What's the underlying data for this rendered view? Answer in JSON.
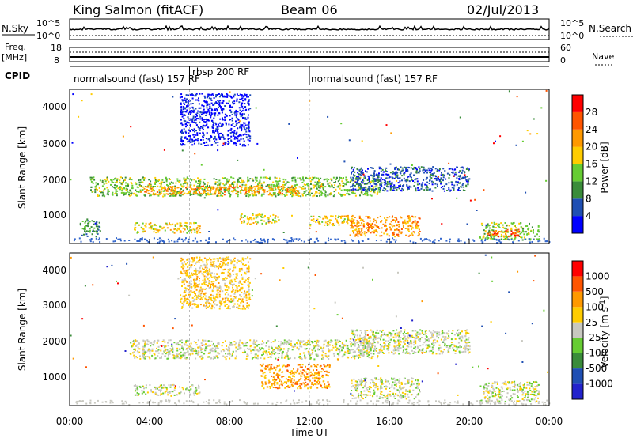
{
  "header": {
    "station": "King Salmon (fitACF)",
    "beam": "Beam 06",
    "date": "02/Jul/2013"
  },
  "top_panels": {
    "nsky_label": "N.Sky",
    "nsky_ticks": [
      "10^5",
      "10^0"
    ],
    "nsearch_label": "N.Search",
    "nsearch_ticks": [
      "10^5",
      "10^0"
    ],
    "freq_label_1": "Freq.",
    "freq_label_2": "[MHz]",
    "freq_ticks": [
      "18",
      "8"
    ],
    "nave_label": "Nave",
    "nave_ticks": [
      "60",
      "0"
    ],
    "cpid_label": "CPID",
    "cpid_segments": [
      {
        "label": "normalsound (fast) 157 RF",
        "start_h": 0,
        "end_h": 6
      },
      {
        "label": "rbsp 200 RF",
        "start_h": 6,
        "end_h": 12
      },
      {
        "label": "normalsound (fast) 157 RF",
        "start_h": 12,
        "end_h": 24
      }
    ]
  },
  "x_axis": {
    "label": "Time UT",
    "ticks": [
      "00:00",
      "04:00",
      "08:00",
      "12:00",
      "16:00",
      "20:00",
      "00:00"
    ]
  },
  "power_panel": {
    "ylabel": "Slant Range [km]",
    "yticks": [
      "4000",
      "3000",
      "2000",
      "1000"
    ],
    "colorbar_label": "Power [dB]",
    "colorbar_ticks": [
      "28",
      "24",
      "20",
      "16",
      "12",
      "8",
      "4"
    ],
    "colors": [
      "#0000ff",
      "#1f4fb3",
      "#3a8c3a",
      "#66cc33",
      "#ffcc00",
      "#ff9900",
      "#ff5500",
      "#ff0000"
    ]
  },
  "velocity_panel": {
    "ylabel": "Slant Range [km]",
    "yticks": [
      "4000",
      "3000",
      "2000",
      "1000"
    ],
    "colorbar_label": "Velocity [m s^-1]",
    "colorbar_ticks": [
      "1000",
      "500",
      "100",
      "25",
      "-25",
      "-100",
      "-500",
      "-1000"
    ],
    "colors": [
      "#2222cc",
      "#1f4fb3",
      "#3a8c3a",
      "#66cc33",
      "#c8c8c0",
      "#ffcc00",
      "#ff9900",
      "#ff5500",
      "#ff0000"
    ]
  },
  "chart_data": {
    "type": "heatmap",
    "x_unit": "hours UT",
    "xlim": [
      0,
      24
    ],
    "ylim_km": [
      180,
      4600
    ],
    "power_regions": [
      {
        "t0": 0.5,
        "t1": 1.5,
        "r0": 400,
        "r1": 900,
        "level": 2
      },
      {
        "t0": 1.0,
        "t1": 15.5,
        "r0": 1550,
        "r1": 2100,
        "level": 3
      },
      {
        "t0": 3.5,
        "t1": 11.5,
        "r0": 1600,
        "r1": 1850,
        "level": 5
      },
      {
        "t0": 3.2,
        "t1": 6.5,
        "r0": 500,
        "r1": 800,
        "level": 4
      },
      {
        "t0": 8.5,
        "t1": 10.5,
        "r0": 750,
        "r1": 1050,
        "level": 4
      },
      {
        "t0": 12.0,
        "t1": 14.0,
        "r0": 700,
        "r1": 1000,
        "level": 4
      },
      {
        "t0": 14.0,
        "t1": 17.5,
        "r0": 400,
        "r1": 1000,
        "level": 5
      },
      {
        "t0": 14.0,
        "t1": 20.0,
        "r0": 1700,
        "r1": 2400,
        "level": 1
      },
      {
        "t0": 20.5,
        "t1": 23.5,
        "r0": 300,
        "r1": 800,
        "level": 3
      },
      {
        "t0": 20.8,
        "t1": 22.5,
        "r0": 400,
        "r1": 600,
        "level": 6
      },
      {
        "t0": 5.5,
        "t1": 9.0,
        "r0": 3000,
        "r1": 4500,
        "level": 0
      }
    ],
    "velocity_regions": [
      {
        "t0": 3.0,
        "t1": 15.5,
        "r0": 1550,
        "r1": 2100,
        "level": 4
      },
      {
        "t0": 9.5,
        "t1": 13.0,
        "r0": 700,
        "r1": 1400,
        "level": 6
      },
      {
        "t0": 14.0,
        "t1": 17.5,
        "r0": 400,
        "r1": 1000,
        "level": 4
      },
      {
        "t0": 14.0,
        "t1": 20.0,
        "r0": 1700,
        "r1": 2400,
        "level": 4
      },
      {
        "t0": 20.5,
        "t1": 23.5,
        "r0": 300,
        "r1": 900,
        "level": 4
      },
      {
        "t0": 5.5,
        "t1": 9.0,
        "r0": 3000,
        "r1": 4500,
        "level": 5
      },
      {
        "t0": 3.2,
        "t1": 6.5,
        "r0": 500,
        "r1": 800,
        "level": 4
      }
    ]
  }
}
